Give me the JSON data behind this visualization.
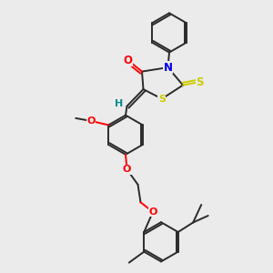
{
  "bg_color": "#ebebeb",
  "bond_color": "#2a2a2a",
  "atom_colors": {
    "O": "#ff0000",
    "N": "#0000ee",
    "S": "#cccc00",
    "H": "#008b8b",
    "C": "#2a2a2a"
  },
  "figsize": [
    3.0,
    3.0
  ],
  "dpi": 100,
  "lw": 1.4
}
